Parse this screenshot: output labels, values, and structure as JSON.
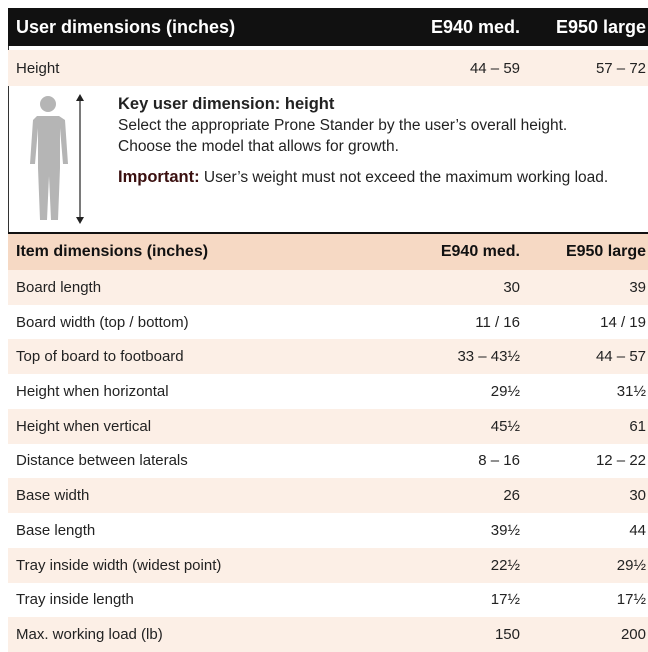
{
  "user_table": {
    "header": [
      "User dimensions (inches)",
      "E940 med.",
      "E950 large"
    ],
    "rows": [
      [
        "Height",
        "44 – 59",
        "57 – 72"
      ]
    ]
  },
  "key": {
    "title": "Key user dimension: height",
    "lines": [
      "Select the appropriate Prone Stander by the user’s overall height.",
      "Choose the model that allows for growth."
    ],
    "important_label": "Important:",
    "important_text": "User’s weight must not exceed the maximum working load."
  },
  "item_table": {
    "header": [
      "Item dimensions (inches)",
      "E940 med.",
      "E950 large"
    ],
    "rows": [
      [
        "Board length",
        "30",
        "39"
      ],
      [
        "Board width (top / bottom)",
        "11 / 16",
        "14 / 19"
      ],
      [
        "Top of board to footboard",
        "33 – 43½",
        "44 – 57"
      ],
      [
        "Height when horizontal",
        "29½",
        "31½"
      ],
      [
        "Height when vertical",
        "45½",
        "61"
      ],
      [
        "Distance between laterals",
        "8 – 16",
        "12 – 22"
      ],
      [
        "Base width",
        "26",
        "30"
      ],
      [
        "Base length",
        "39½",
        "44"
      ],
      [
        "Tray inside width (widest point)",
        "22½",
        "29½"
      ],
      [
        "Tray inside length",
        "17½",
        "17½"
      ],
      [
        "Max. working load (lb)",
        "150",
        "200"
      ]
    ]
  }
}
